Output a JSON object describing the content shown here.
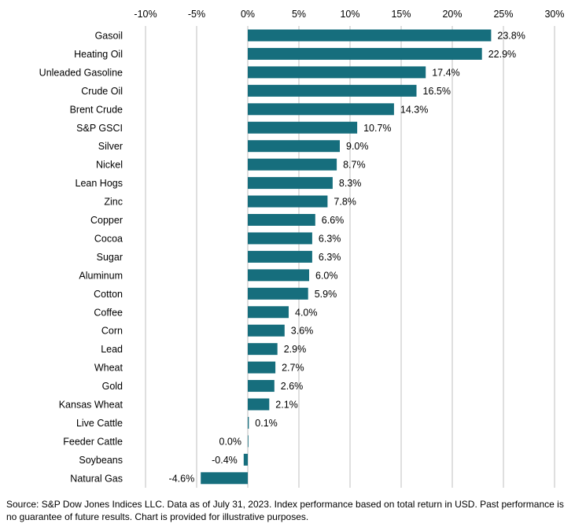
{
  "chart_data": {
    "type": "bar",
    "orientation": "horizontal",
    "title": "",
    "xlabel": "",
    "ylabel": "",
    "xlim": [
      -10,
      30
    ],
    "x_ticks": [
      -10,
      -5,
      0,
      5,
      10,
      15,
      20,
      25,
      30
    ],
    "x_tick_labels": [
      "-10%",
      "-5%",
      "0%",
      "5%",
      "10%",
      "15%",
      "20%",
      "25%",
      "30%"
    ],
    "grid": true,
    "bar_color": "#166E7D",
    "categories": [
      "Gasoil",
      "Heating Oil",
      "Unleaded Gasoline",
      "Crude Oil",
      "Brent Crude",
      "S&P GSCI",
      "Silver",
      "Nickel",
      "Lean Hogs",
      "Zinc",
      "Copper",
      "Cocoa",
      "Sugar",
      "Aluminum",
      "Cotton",
      "Coffee",
      "Corn",
      "Lead",
      "Wheat",
      "Gold",
      "Kansas Wheat",
      "Live Cattle",
      "Feeder Cattle",
      "Soybeans",
      "Natural Gas"
    ],
    "values": [
      23.8,
      22.9,
      17.4,
      16.5,
      14.3,
      10.7,
      9.0,
      8.7,
      8.3,
      7.8,
      6.6,
      6.3,
      6.3,
      6.0,
      5.9,
      4.0,
      3.6,
      2.9,
      2.7,
      2.6,
      2.1,
      0.1,
      0.0,
      -0.4,
      -4.6
    ],
    "value_labels": [
      "23.8%",
      "22.9%",
      "17.4%",
      "16.5%",
      "14.3%",
      "10.7%",
      "9.0%",
      "8.7%",
      "8.3%",
      "7.8%",
      "6.6%",
      "6.3%",
      "6.3%",
      "6.0%",
      "5.9%",
      "4.0%",
      "3.6%",
      "2.9%",
      "2.7%",
      "2.6%",
      "2.1%",
      "0.1%",
      "0.0%",
      "-0.4%",
      "-4.6%"
    ]
  },
  "source_note": "Source: S&P Dow Jones Indices LLC. Data as of July 31, 2023. Index performance based on total return in USD. Past performance is no guarantee of future results. Chart is provided for illustrative purposes."
}
